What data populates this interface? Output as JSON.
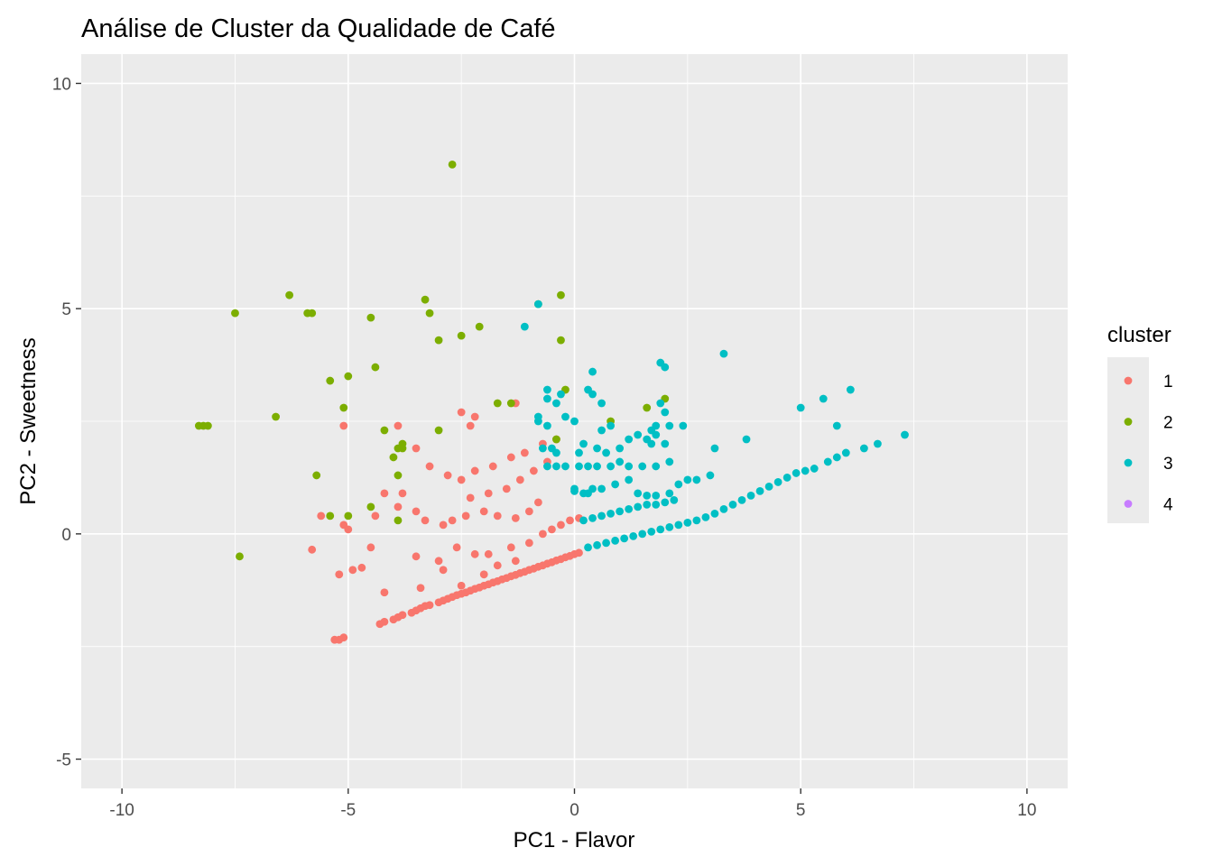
{
  "chart_data": {
    "type": "scatter",
    "title": "Análise de Cluster da Qualidade de Café",
    "xlabel": "PC1 - Flavor",
    "ylabel": "PC2 - Sweetness",
    "xlim": [
      -10.9,
      10.9
    ],
    "ylim": [
      -5.65,
      10.65
    ],
    "x_ticks": [
      -10,
      -5,
      0,
      5,
      10
    ],
    "y_ticks": [
      -5,
      0,
      5,
      10
    ],
    "x_tick_labels": [
      "-10",
      "-5",
      "0",
      "5",
      "10"
    ],
    "y_tick_labels": [
      "-5",
      "0",
      "5",
      "10"
    ],
    "grid": true,
    "legend": {
      "title": "cluster",
      "position": "right"
    },
    "colors": {
      "1": "#F8766D",
      "2": "#7CAE00",
      "3": "#00BFC4",
      "4": "#C77CFF"
    },
    "series": [
      {
        "name": "1",
        "points": [
          [
            -5.1,
            -2.3
          ],
          [
            -5.2,
            -2.35
          ],
          [
            -5.3,
            -2.35
          ],
          [
            -4.3,
            -2.0
          ],
          [
            -4.2,
            -1.95
          ],
          [
            -4.0,
            -1.9
          ],
          [
            -3.9,
            -1.85
          ],
          [
            -3.8,
            -1.8
          ],
          [
            -3.6,
            -1.75
          ],
          [
            -3.5,
            -1.7
          ],
          [
            -3.4,
            -1.65
          ],
          [
            -3.3,
            -1.6
          ],
          [
            -3.2,
            -1.58
          ],
          [
            -3.0,
            -1.52
          ],
          [
            -2.9,
            -1.48
          ],
          [
            -2.8,
            -1.44
          ],
          [
            -2.7,
            -1.4
          ],
          [
            -2.6,
            -1.36
          ],
          [
            -2.5,
            -1.33
          ],
          [
            -2.4,
            -1.3
          ],
          [
            -2.3,
            -1.26
          ],
          [
            -2.2,
            -1.22
          ],
          [
            -2.1,
            -1.19
          ],
          [
            -2.0,
            -1.15
          ],
          [
            -1.9,
            -1.12
          ],
          [
            -1.8,
            -1.08
          ],
          [
            -1.7,
            -1.05
          ],
          [
            -1.6,
            -1.01
          ],
          [
            -1.5,
            -0.98
          ],
          [
            -1.4,
            -0.94
          ],
          [
            -1.3,
            -0.91
          ],
          [
            -1.2,
            -0.87
          ],
          [
            -1.1,
            -0.84
          ],
          [
            -1.0,
            -0.8
          ],
          [
            -0.9,
            -0.77
          ],
          [
            -0.8,
            -0.73
          ],
          [
            -0.7,
            -0.7
          ],
          [
            -0.6,
            -0.66
          ],
          [
            -0.5,
            -0.63
          ],
          [
            -0.4,
            -0.59
          ],
          [
            -0.3,
            -0.56
          ],
          [
            -0.2,
            -0.52
          ],
          [
            -0.1,
            -0.49
          ],
          [
            0.0,
            -0.45
          ],
          [
            0.1,
            -0.42
          ],
          [
            -4.2,
            -1.3
          ],
          [
            -3.4,
            -1.2
          ],
          [
            -2.5,
            -1.15
          ],
          [
            -2.0,
            -0.9
          ],
          [
            -1.7,
            -0.7
          ],
          [
            -1.3,
            -0.6
          ],
          [
            -2.9,
            -0.8
          ],
          [
            -3.0,
            -0.6
          ],
          [
            -3.5,
            -0.5
          ],
          [
            -2.6,
            -0.3
          ],
          [
            -2.2,
            -0.45
          ],
          [
            -1.9,
            -0.45
          ],
          [
            -1.4,
            -0.3
          ],
          [
            -1.0,
            -0.2
          ],
          [
            -0.7,
            0.0
          ],
          [
            -0.5,
            0.1
          ],
          [
            -0.3,
            0.2
          ],
          [
            -0.1,
            0.3
          ],
          [
            0.1,
            0.35
          ],
          [
            -5.2,
            -0.9
          ],
          [
            -4.9,
            -0.8
          ],
          [
            -4.7,
            -0.75
          ],
          [
            -4.5,
            -0.3
          ],
          [
            -5.0,
            0.1
          ],
          [
            -5.8,
            -0.35
          ],
          [
            -5.6,
            0.4
          ],
          [
            -4.2,
            0.9
          ],
          [
            -3.9,
            0.6
          ],
          [
            -3.5,
            0.5
          ],
          [
            -3.3,
            0.3
          ],
          [
            -2.9,
            0.2
          ],
          [
            -2.7,
            0.3
          ],
          [
            -2.4,
            0.4
          ],
          [
            -2.0,
            0.5
          ],
          [
            -1.7,
            0.4
          ],
          [
            -1.3,
            0.35
          ],
          [
            -1.0,
            0.5
          ],
          [
            -0.8,
            0.7
          ],
          [
            -2.3,
            0.8
          ],
          [
            -1.9,
            0.9
          ],
          [
            -1.5,
            1.0
          ],
          [
            -1.2,
            1.2
          ],
          [
            -0.9,
            1.4
          ],
          [
            -0.6,
            1.6
          ],
          [
            -3.2,
            1.5
          ],
          [
            -2.8,
            1.3
          ],
          [
            -2.5,
            1.2
          ],
          [
            -2.2,
            1.4
          ],
          [
            -1.8,
            1.5
          ],
          [
            -1.4,
            1.7
          ],
          [
            -1.1,
            1.8
          ],
          [
            -0.7,
            2.0
          ],
          [
            -3.9,
            2.4
          ],
          [
            -3.5,
            1.9
          ],
          [
            -2.5,
            2.7
          ],
          [
            -2.3,
            2.4
          ],
          [
            -2.2,
            2.6
          ],
          [
            -1.3,
            2.9
          ],
          [
            -0.4,
            2.1
          ],
          [
            -5.1,
            2.4
          ],
          [
            -5.1,
            0.2
          ],
          [
            -4.4,
            0.4
          ],
          [
            -3.8,
            0.9
          ]
        ]
      },
      {
        "name": "2",
        "points": [
          [
            -2.7,
            8.2
          ],
          [
            -6.3,
            5.3
          ],
          [
            -3.3,
            5.2
          ],
          [
            -3.2,
            4.9
          ],
          [
            -0.3,
            5.3
          ],
          [
            -0.8,
            5.1
          ],
          [
            -7.5,
            4.9
          ],
          [
            -5.9,
            4.9
          ],
          [
            -5.8,
            4.9
          ],
          [
            -4.5,
            4.8
          ],
          [
            -2.5,
            4.4
          ],
          [
            -2.1,
            4.6
          ],
          [
            -3.0,
            4.3
          ],
          [
            -0.3,
            4.3
          ],
          [
            -4.4,
            3.7
          ],
          [
            -5.0,
            3.5
          ],
          [
            -5.4,
            3.4
          ],
          [
            -5.1,
            2.8
          ],
          [
            -8.2,
            2.4
          ],
          [
            -8.3,
            2.4
          ],
          [
            -8.1,
            2.4
          ],
          [
            -6.6,
            2.6
          ],
          [
            -4.2,
            2.3
          ],
          [
            -3.8,
            2.0
          ],
          [
            -3.8,
            1.9
          ],
          [
            -3.9,
            1.9
          ],
          [
            -4.0,
            1.7
          ],
          [
            -3.0,
            2.3
          ],
          [
            -1.7,
            2.9
          ],
          [
            -1.4,
            2.9
          ],
          [
            -0.2,
            3.2
          ],
          [
            1.6,
            2.8
          ],
          [
            2.0,
            3.0
          ],
          [
            0.8,
            2.5
          ],
          [
            -0.4,
            2.1
          ],
          [
            -5.7,
            1.3
          ],
          [
            -3.9,
            1.3
          ],
          [
            -5.4,
            0.4
          ],
          [
            -5.0,
            0.4
          ],
          [
            -4.5,
            0.6
          ],
          [
            -3.9,
            0.3
          ],
          [
            -7.4,
            -0.5
          ]
        ]
      },
      {
        "name": "3",
        "points": [
          [
            -1.1,
            4.6
          ],
          [
            -0.8,
            5.1
          ],
          [
            3.3,
            4.0
          ],
          [
            1.9,
            3.8
          ],
          [
            2.0,
            3.7
          ],
          [
            0.4,
            3.6
          ],
          [
            -0.6,
            3.2
          ],
          [
            -0.3,
            3.1
          ],
          [
            -0.6,
            3.0
          ],
          [
            -0.4,
            2.9
          ],
          [
            0.3,
            3.2
          ],
          [
            0.4,
            3.1
          ],
          [
            0.6,
            2.9
          ],
          [
            1.8,
            2.4
          ],
          [
            1.9,
            2.9
          ],
          [
            2.0,
            2.7
          ],
          [
            0.0,
            2.5
          ],
          [
            -0.2,
            2.6
          ],
          [
            -0.8,
            2.6
          ],
          [
            -0.6,
            2.4
          ],
          [
            -0.8,
            2.5
          ],
          [
            0.6,
            2.3
          ],
          [
            0.8,
            2.4
          ],
          [
            1.4,
            2.2
          ],
          [
            1.6,
            2.1
          ],
          [
            1.7,
            2.3
          ],
          [
            2.1,
            2.4
          ],
          [
            2.4,
            2.4
          ],
          [
            -0.7,
            1.9
          ],
          [
            -0.5,
            1.9
          ],
          [
            -0.4,
            1.8
          ],
          [
            0.1,
            1.8
          ],
          [
            0.2,
            2.0
          ],
          [
            0.5,
            1.9
          ],
          [
            0.7,
            1.8
          ],
          [
            1.0,
            1.9
          ],
          [
            1.2,
            2.1
          ],
          [
            1.7,
            2.0
          ],
          [
            1.8,
            2.2
          ],
          [
            2.0,
            2.0
          ],
          [
            3.1,
            1.9
          ],
          [
            3.8,
            2.1
          ],
          [
            -0.6,
            1.5
          ],
          [
            -0.4,
            1.5
          ],
          [
            -0.2,
            1.5
          ],
          [
            0.1,
            1.5
          ],
          [
            0.3,
            1.5
          ],
          [
            0.5,
            1.5
          ],
          [
            0.8,
            1.5
          ],
          [
            1.0,
            1.6
          ],
          [
            1.2,
            1.5
          ],
          [
            1.5,
            1.5
          ],
          [
            1.8,
            1.5
          ],
          [
            2.1,
            1.6
          ],
          [
            0.0,
            1.0
          ],
          [
            0.2,
            0.9
          ],
          [
            0.4,
            1.0
          ],
          [
            0.6,
            1.0
          ],
          [
            0.9,
            1.1
          ],
          [
            1.2,
            1.2
          ],
          [
            0.0,
            0.95
          ],
          [
            0.3,
            0.9
          ],
          [
            1.4,
            0.9
          ],
          [
            1.6,
            0.85
          ],
          [
            1.8,
            0.85
          ],
          [
            2.1,
            0.9
          ],
          [
            2.3,
            1.1
          ],
          [
            2.5,
            1.2
          ],
          [
            2.7,
            1.2
          ],
          [
            3.0,
            1.3
          ],
          [
            0.2,
            0.3
          ],
          [
            0.4,
            0.35
          ],
          [
            0.6,
            0.4
          ],
          [
            0.8,
            0.45
          ],
          [
            1.0,
            0.5
          ],
          [
            1.2,
            0.55
          ],
          [
            1.4,
            0.6
          ],
          [
            1.6,
            0.65
          ],
          [
            1.8,
            0.65
          ],
          [
            2.0,
            0.7
          ],
          [
            2.2,
            0.75
          ],
          [
            0.3,
            -0.3
          ],
          [
            0.5,
            -0.25
          ],
          [
            0.7,
            -0.2
          ],
          [
            0.9,
            -0.15
          ],
          [
            1.1,
            -0.1
          ],
          [
            1.3,
            -0.05
          ],
          [
            1.5,
            0.0
          ],
          [
            1.7,
            0.05
          ],
          [
            1.9,
            0.1
          ],
          [
            2.1,
            0.15
          ],
          [
            2.3,
            0.2
          ],
          [
            2.5,
            0.25
          ],
          [
            2.7,
            0.3
          ],
          [
            2.9,
            0.37
          ],
          [
            3.1,
            0.45
          ],
          [
            3.3,
            0.55
          ],
          [
            3.5,
            0.65
          ],
          [
            3.7,
            0.75
          ],
          [
            3.9,
            0.85
          ],
          [
            4.1,
            0.95
          ],
          [
            4.3,
            1.05
          ],
          [
            4.5,
            1.15
          ],
          [
            4.7,
            1.25
          ],
          [
            4.9,
            1.35
          ],
          [
            5.1,
            1.4
          ],
          [
            5.3,
            1.45
          ],
          [
            5.6,
            1.6
          ],
          [
            5.8,
            1.7
          ],
          [
            5.0,
            2.8
          ],
          [
            5.5,
            3.0
          ],
          [
            5.8,
            2.4
          ],
          [
            6.1,
            3.2
          ],
          [
            6.4,
            1.9
          ],
          [
            6.7,
            2.0
          ],
          [
            7.3,
            2.2
          ],
          [
            6.0,
            1.8
          ]
        ]
      },
      {
        "name": "4",
        "points": []
      }
    ]
  }
}
